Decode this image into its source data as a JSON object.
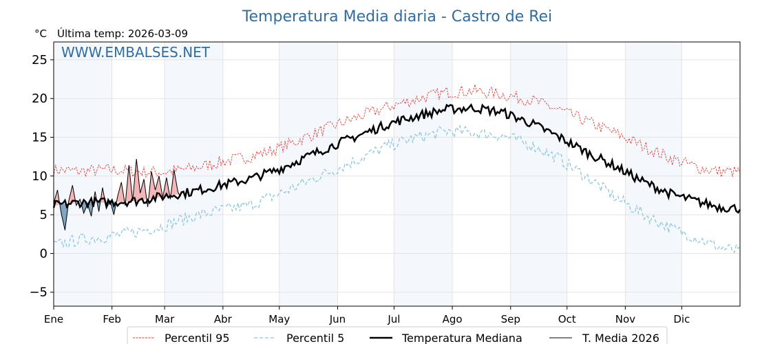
{
  "header": {
    "title": "Temperatura Media diaria - Castro de Rei",
    "unit": "°C",
    "last_temp_label": "Última temp: 2026-03-09",
    "watermark": "WWW.EMBALSES.NET"
  },
  "colors": {
    "title": "#2e6da4",
    "watermark": "#2e6da4",
    "p95": "#e8302a",
    "p5": "#8cc8dc",
    "median": "#000000",
    "media2026": "#000000",
    "above_fill": "#f4b6b6",
    "below_fill": "#7fa5c4",
    "band": "#e6eef8"
  },
  "chart_data": {
    "type": "line",
    "title": "Temperatura Media diaria - Castro de Rei",
    "ylabel": "°C",
    "ylim": [
      -6.8,
      27.3
    ],
    "yticks": [
      -5,
      0,
      5,
      10,
      15,
      20,
      25
    ],
    "xlim": [
      1,
      366
    ],
    "grid": true,
    "legend_position": "bottom",
    "months": [
      {
        "label": "Ene",
        "day": 1
      },
      {
        "label": "Feb",
        "day": 32
      },
      {
        "label": "Mar",
        "day": 60
      },
      {
        "label": "Abr",
        "day": 91
      },
      {
        "label": "May",
        "day": 121
      },
      {
        "label": "Jun",
        "day": 152
      },
      {
        "label": "Jul",
        "day": 182
      },
      {
        "label": "Ago",
        "day": 213
      },
      {
        "label": "Sep",
        "day": 244
      },
      {
        "label": "Oct",
        "day": 274
      },
      {
        "label": "Nov",
        "day": 305
      },
      {
        "label": "Dic",
        "day": 335
      }
    ],
    "series_keypoints": {
      "p95": [
        [
          1,
          10.8
        ],
        [
          15,
          10.6
        ],
        [
          30,
          10.8
        ],
        [
          45,
          10.6
        ],
        [
          60,
          10.5
        ],
        [
          75,
          11.0
        ],
        [
          90,
          11.8
        ],
        [
          105,
          12.5
        ],
        [
          120,
          13.5
        ],
        [
          135,
          15.0
        ],
        [
          150,
          16.5
        ],
        [
          165,
          17.8
        ],
        [
          180,
          19.0
        ],
        [
          195,
          20.0
        ],
        [
          210,
          20.8
        ],
        [
          225,
          21.0
        ],
        [
          240,
          20.5
        ],
        [
          255,
          19.8
        ],
        [
          270,
          18.5
        ],
        [
          285,
          17.0
        ],
        [
          300,
          15.5
        ],
        [
          315,
          13.8
        ],
        [
          330,
          12.2
        ],
        [
          345,
          11.0
        ],
        [
          355,
          10.6
        ],
        [
          366,
          10.5
        ]
      ],
      "p5": [
        [
          1,
          1.0
        ],
        [
          15,
          1.8
        ],
        [
          30,
          2.2
        ],
        [
          45,
          2.8
        ],
        [
          60,
          3.6
        ],
        [
          75,
          4.8
        ],
        [
          90,
          5.6
        ],
        [
          105,
          6.2
        ],
        [
          120,
          7.6
        ],
        [
          135,
          9.2
        ],
        [
          150,
          10.8
        ],
        [
          165,
          12.4
        ],
        [
          180,
          14.0
        ],
        [
          195,
          15.0
        ],
        [
          210,
          15.8
        ],
        [
          225,
          15.6
        ],
        [
          240,
          15.2
        ],
        [
          255,
          14.0
        ],
        [
          270,
          12.2
        ],
        [
          285,
          9.8
        ],
        [
          300,
          7.2
        ],
        [
          315,
          5.0
        ],
        [
          330,
          3.2
        ],
        [
          345,
          1.8
        ],
        [
          355,
          0.8
        ],
        [
          366,
          0.2
        ]
      ],
      "median": [
        [
          1,
          6.2
        ],
        [
          15,
          6.6
        ],
        [
          30,
          6.6
        ],
        [
          45,
          6.8
        ],
        [
          60,
          7.4
        ],
        [
          75,
          8.0
        ],
        [
          90,
          8.8
        ],
        [
          105,
          9.6
        ],
        [
          120,
          10.8
        ],
        [
          135,
          12.4
        ],
        [
          150,
          14.0
        ],
        [
          165,
          15.4
        ],
        [
          180,
          16.8
        ],
        [
          195,
          17.8
        ],
        [
          210,
          18.6
        ],
        [
          225,
          18.8
        ],
        [
          240,
          18.2
        ],
        [
          255,
          16.8
        ],
        [
          270,
          15.0
        ],
        [
          285,
          13.0
        ],
        [
          300,
          11.2
        ],
        [
          315,
          9.2
        ],
        [
          330,
          7.6
        ],
        [
          345,
          6.6
        ],
        [
          355,
          6.0
        ],
        [
          366,
          5.8
        ]
      ],
      "media2026": [
        [
          1,
          6.5
        ],
        [
          3,
          8.2
        ],
        [
          5,
          5.2
        ],
        [
          7,
          3.0
        ],
        [
          9,
          6.8
        ],
        [
          11,
          8.8
        ],
        [
          13,
          6.2
        ],
        [
          15,
          7.0
        ],
        [
          17,
          5.2
        ],
        [
          19,
          6.4
        ],
        [
          21,
          4.8
        ],
        [
          23,
          8.0
        ],
        [
          25,
          5.4
        ],
        [
          27,
          8.5
        ],
        [
          29,
          5.8
        ],
        [
          31,
          6.8
        ],
        [
          33,
          5.0
        ],
        [
          35,
          7.4
        ],
        [
          37,
          9.2
        ],
        [
          39,
          6.2
        ],
        [
          41,
          11.4
        ],
        [
          43,
          6.8
        ],
        [
          45,
          12.2
        ],
        [
          47,
          7.8
        ],
        [
          49,
          9.6
        ],
        [
          51,
          6.0
        ],
        [
          53,
          10.6
        ],
        [
          55,
          8.2
        ],
        [
          57,
          10.0
        ],
        [
          59,
          7.2
        ],
        [
          61,
          9.8
        ],
        [
          63,
          7.0
        ],
        [
          65,
          10.8
        ],
        [
          67,
          8.0
        ],
        [
          68,
          7.4
        ]
      ]
    }
  },
  "legend": {
    "p95": "Percentil 95",
    "p5": "Percentil 5",
    "median": "Temperatura Mediana",
    "media2026": "T. Media 2026"
  }
}
